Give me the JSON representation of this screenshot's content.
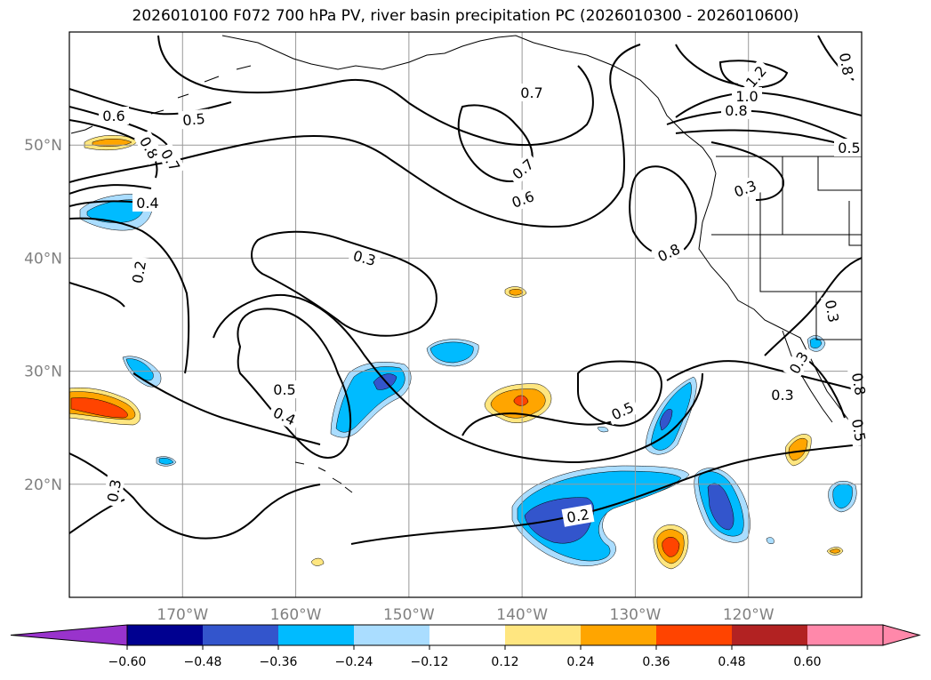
{
  "title": "2026010100 F072 700 hPa PV, river basin precipitation PC (2026010300 - 2026010600)",
  "colors": {
    "neg_extreme": "#9933cc",
    "neg_060": "#000090",
    "neg_048": "#3355cc",
    "neg_036": "#00bbff",
    "neg_024": "#aaddff",
    "neutral": "#ffffff",
    "pos_012": "#ffe680",
    "pos_024": "#ffa500",
    "pos_036": "#ff4400",
    "pos_048": "#b22222",
    "pos_extreme": "#ff88aa"
  },
  "map": {
    "lon_range": [
      -180,
      -110
    ],
    "lat_range": [
      10,
      60
    ],
    "lat_ticks": [
      {
        "value": 20,
        "label": "20°N"
      },
      {
        "value": 30,
        "label": "30°N"
      },
      {
        "value": 40,
        "label": "40°N"
      },
      {
        "value": 50,
        "label": "50°N"
      }
    ],
    "lon_ticks": [
      {
        "value": -170,
        "label": "170°W"
      },
      {
        "value": -160,
        "label": "160°W"
      },
      {
        "value": -150,
        "label": "150°W"
      },
      {
        "value": -140,
        "label": "140°W"
      },
      {
        "value": -130,
        "label": "130°W"
      },
      {
        "value": -120,
        "label": "120°W"
      }
    ],
    "grid": true,
    "contour_labels": [
      "0.6",
      "0.5",
      "0.8",
      "0.7",
      "0.4",
      "0.2",
      "0.3",
      "0.3",
      "0.5",
      "0.4",
      "0.3",
      "0.7",
      "0.7",
      "0.6",
      "0.8",
      "0.5",
      "1.2",
      "1.0",
      "0.8",
      "0.5",
      "0.3",
      "0.3",
      "0.8",
      "0.2",
      "0.3",
      "0.8",
      "0.5"
    ]
  },
  "colorbar": {
    "labels": [
      "−0.60",
      "−0.48",
      "−0.36",
      "−0.24",
      "−0.12",
      "0.12",
      "0.24",
      "0.36",
      "0.48",
      "0.60"
    ]
  }
}
